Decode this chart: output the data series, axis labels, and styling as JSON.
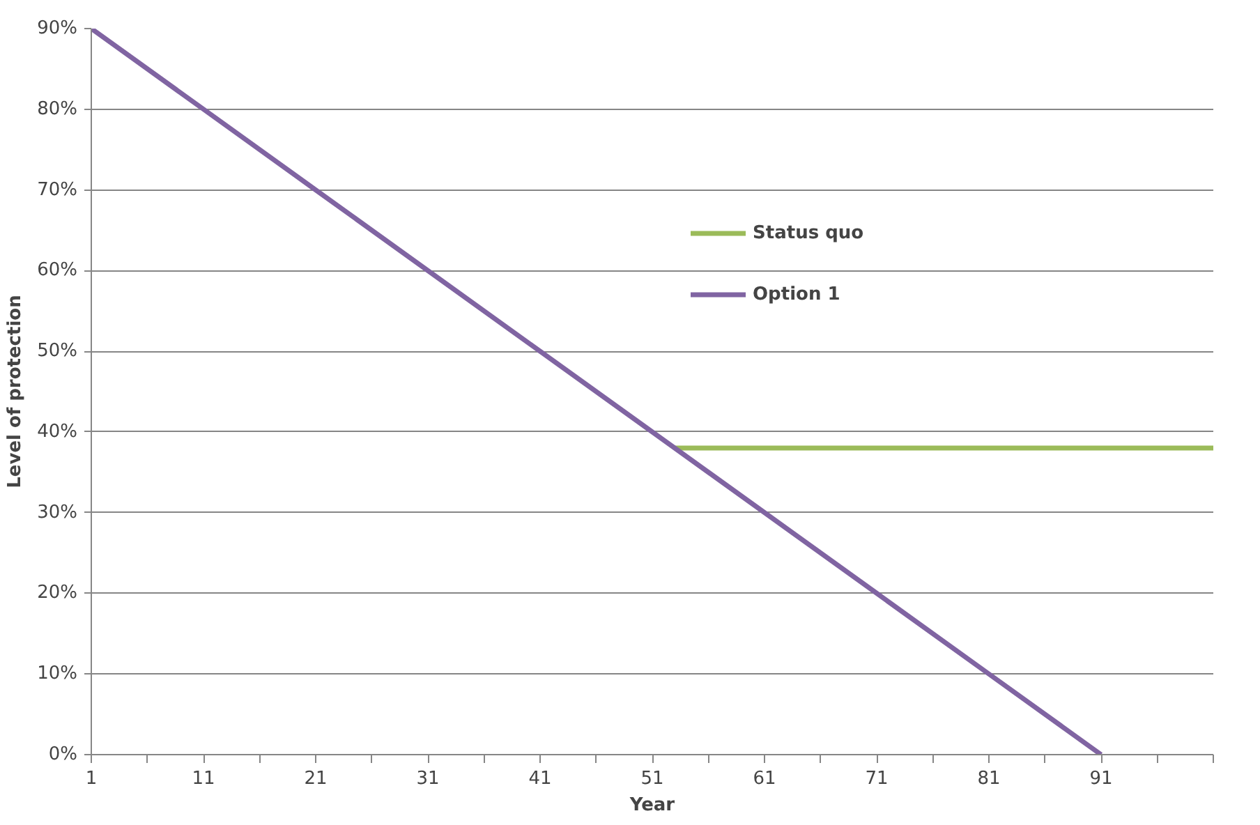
{
  "chart_data": {
    "type": "line",
    "xlabel": "Year",
    "ylabel": "Level of protection",
    "xlim": [
      1,
      101
    ],
    "xticks": [
      1,
      {
        "value": 6,
        "label": null
      },
      11,
      {
        "value": 16,
        "label": null
      },
      21,
      {
        "value": 26,
        "label": null
      },
      31,
      {
        "value": 36,
        "label": null
      },
      41,
      {
        "value": 46,
        "label": null
      },
      51,
      {
        "value": 56,
        "label": null
      },
      61,
      {
        "value": 66,
        "label": null
      },
      71,
      {
        "value": 76,
        "label": null
      },
      81,
      {
        "value": 86,
        "label": null
      },
      91,
      {
        "value": 96,
        "label": null
      },
      {
        "value": 101,
        "label": null
      }
    ],
    "ylim": [
      0,
      90
    ],
    "yticks": [
      {
        "value": 0,
        "label": "0%"
      },
      {
        "value": 10,
        "label": "10%"
      },
      {
        "value": 20,
        "label": "20%"
      },
      {
        "value": 30,
        "label": "30%"
      },
      {
        "value": 40,
        "label": "40%"
      },
      {
        "value": 50,
        "label": "50%"
      },
      {
        "value": 60,
        "label": "60%"
      },
      {
        "value": 70,
        "label": "70%"
      },
      {
        "value": 80,
        "label": "80%"
      },
      {
        "value": 90,
        "label": "90%"
      }
    ],
    "grid": "y",
    "legend": "top right",
    "line_style": "solid",
    "marker": "none",
    "series": [
      {
        "name": "Status quo",
        "color": "#9bbb59",
        "x": [
          53,
          101
        ],
        "values": [
          38,
          38
        ]
      },
      {
        "name": "Option 1",
        "color": "#8064a2",
        "x": [
          1,
          11,
          21,
          31,
          41,
          51,
          61,
          71,
          81,
          91
        ],
        "values": [
          90,
          80,
          70,
          60,
          50,
          40,
          30,
          20,
          10,
          0
        ]
      }
    ]
  }
}
